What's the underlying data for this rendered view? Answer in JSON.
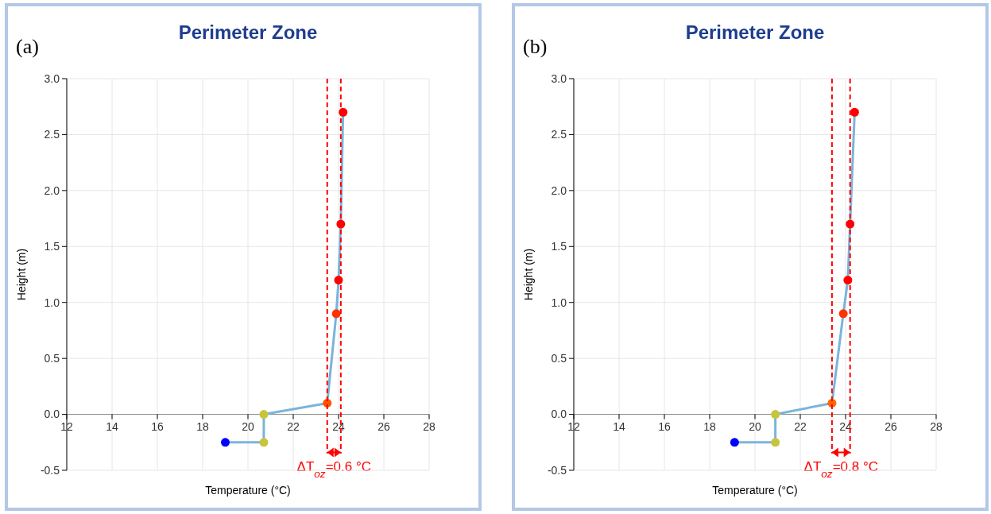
{
  "chart_data": [
    {
      "type": "line",
      "title": "Perimeter Zone",
      "xlabel": "Temperature (°C)",
      "ylabel": "Height (m)",
      "xlim": [
        12,
        28
      ],
      "xticks": [
        12,
        14,
        16,
        18,
        20,
        22,
        24,
        26,
        28
      ],
      "ylim": [
        -0.5,
        3
      ],
      "yticks": [
        {
          "value": -0.5,
          "label": "-0.5"
        },
        {
          "value": 0,
          "label": "0.0"
        },
        {
          "value": 0.5,
          "label": "0.5"
        },
        {
          "value": 1,
          "label": "1.0"
        },
        {
          "value": 1.5,
          "label": "1.5"
        },
        {
          "value": 2,
          "label": "2.0"
        },
        {
          "value": 2.5,
          "label": "2.5"
        },
        {
          "value": 3,
          "label": "3.0"
        }
      ],
      "grid": true,
      "marker": "circle",
      "line_style": "solid",
      "series": [
        {
          "color": "#7ab4dc",
          "x": [
            19.0,
            20.7,
            20.7,
            23.5,
            23.9,
            24.0,
            24.1,
            24.2
          ],
          "values": [
            -0.25,
            -0.25,
            0,
            0.1,
            0.9,
            1.2,
            1.7,
            2.7
          ],
          "colors": [
            "#0000ff",
            "#c8c43c",
            "#c8c43c",
            "#ff5500",
            "#ff3300",
            "#ff0000",
            "#ff0000",
            "#ff0000"
          ]
        }
      ],
      "ref_lines": [
        {
          "axis": "x",
          "value": 23.5,
          "color": "#ff0000",
          "line_style": "dashed"
        },
        {
          "axis": "x",
          "value": 24.1,
          "color": "#ff0000",
          "line_style": "dashed"
        }
      ],
      "annotations": [
        "(a)",
        "ΔT$_{oz}$=0.6 °C"
      ]
    },
    {
      "type": "line",
      "title": "Perimeter Zone",
      "xlabel": "Temperature (°C)",
      "ylabel": "Height (m)",
      "xlim": [
        12,
        28
      ],
      "xticks": [
        12,
        14,
        16,
        18,
        20,
        22,
        24,
        26,
        28
      ],
      "ylim": [
        -0.5,
        3
      ],
      "yticks": [
        {
          "value": -0.5,
          "label": "-0.5"
        },
        {
          "value": 0,
          "label": "0.0"
        },
        {
          "value": 0.5,
          "label": "0.5"
        },
        {
          "value": 1,
          "label": "1.0"
        },
        {
          "value": 1.5,
          "label": "1.5"
        },
        {
          "value": 2,
          "label": "2.0"
        },
        {
          "value": 2.5,
          "label": "2.5"
        },
        {
          "value": 3,
          "label": "3.0"
        }
      ],
      "grid": true,
      "marker": "circle",
      "line_style": "solid",
      "series": [
        {
          "color": "#7ab4dc",
          "x": [
            19.1,
            20.9,
            20.9,
            23.4,
            23.9,
            24.1,
            24.2,
            24.4
          ],
          "values": [
            -0.25,
            -0.25,
            0,
            0.1,
            0.9,
            1.2,
            1.7,
            2.7
          ],
          "colors": [
            "#0000ff",
            "#c8c43c",
            "#c8c43c",
            "#ff6600",
            "#ff3300",
            "#ff0000",
            "#ff0000",
            "#ff0000"
          ]
        }
      ],
      "ref_lines": [
        {
          "axis": "x",
          "value": 23.4,
          "color": "#ff0000",
          "line_style": "dashed"
        },
        {
          "axis": "x",
          "value": 24.2,
          "color": "#ff0000",
          "line_style": "dashed"
        }
      ],
      "annotations": [
        "(b)",
        "ΔT$_{oz}$=0.8 °C"
      ]
    }
  ]
}
